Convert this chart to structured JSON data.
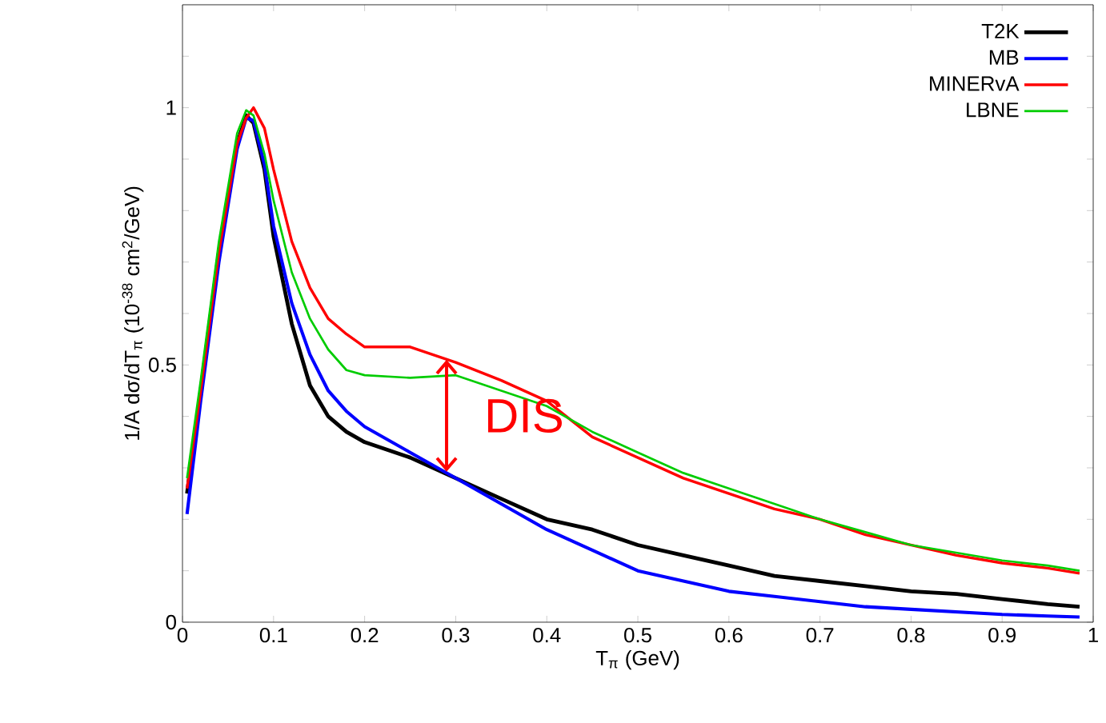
{
  "chart_data": {
    "type": "line",
    "xlabel": "T$_{π}$ (GeV)",
    "ylabel": "1/A dσ/dT$_{π}$ (10$^{-38}$ cm$^{2}$/GeV)",
    "x": [
      0.005,
      0.02,
      0.04,
      0.06,
      0.07,
      0.078,
      0.09,
      0.1,
      0.12,
      0.14,
      0.16,
      0.18,
      0.2,
      0.25,
      0.3,
      0.35,
      0.4,
      0.45,
      0.5,
      0.55,
      0.6,
      0.65,
      0.7,
      0.75,
      0.8,
      0.85,
      0.9,
      0.95,
      0.985
    ],
    "series": [
      {
        "name": "T2K",
        "color": "#000000",
        "values": [
          0.25,
          0.45,
          0.72,
          0.93,
          0.985,
          0.97,
          0.88,
          0.75,
          0.58,
          0.46,
          0.4,
          0.37,
          0.35,
          0.32,
          0.28,
          0.24,
          0.2,
          0.18,
          0.15,
          0.13,
          0.11,
          0.09,
          0.08,
          0.07,
          0.06,
          0.055,
          0.045,
          0.035,
          0.03
        ]
      },
      {
        "name": "MB",
        "color": "#0000ff",
        "values": [
          0.21,
          0.43,
          0.7,
          0.92,
          0.98,
          0.975,
          0.89,
          0.77,
          0.62,
          0.52,
          0.45,
          0.41,
          0.38,
          0.33,
          0.28,
          0.23,
          0.18,
          0.14,
          0.1,
          0.08,
          0.06,
          0.05,
          0.04,
          0.03,
          0.025,
          0.02,
          0.015,
          0.012,
          0.01
        ]
      },
      {
        "name": "MINERvA",
        "color": "#ff0000",
        "values": [
          0.26,
          0.45,
          0.72,
          0.93,
          0.98,
          1.0,
          0.96,
          0.88,
          0.74,
          0.65,
          0.59,
          0.56,
          0.535,
          0.535,
          0.505,
          0.47,
          0.43,
          0.36,
          0.32,
          0.28,
          0.25,
          0.22,
          0.2,
          0.17,
          0.15,
          0.13,
          0.115,
          0.105,
          0.095
        ]
      },
      {
        "name": "LBNE",
        "color": "#00cc00",
        "values": [
          0.28,
          0.47,
          0.74,
          0.95,
          0.995,
          0.985,
          0.91,
          0.82,
          0.68,
          0.59,
          0.53,
          0.49,
          0.48,
          0.475,
          0.48,
          0.45,
          0.42,
          0.37,
          0.33,
          0.29,
          0.26,
          0.23,
          0.2,
          0.175,
          0.15,
          0.135,
          0.12,
          0.11,
          0.1
        ]
      }
    ],
    "xlim": [
      0,
      1
    ],
    "ylim": [
      0,
      1.2
    ],
    "xticks": [
      0,
      0.1,
      0.2,
      0.3,
      0.4,
      0.5,
      0.6,
      0.7,
      0.8,
      0.9,
      1
    ],
    "yticks": [
      0,
      {
        "value": 0.1,
        "label": null
      },
      {
        "value": 0.2,
        "label": null
      },
      {
        "value": 0.3,
        "label": null
      },
      {
        "value": 0.4,
        "label": null
      },
      0.5,
      {
        "value": 0.6,
        "label": null
      },
      {
        "value": 0.7,
        "label": null
      },
      {
        "value": 0.8,
        "label": null
      },
      {
        "value": 0.9,
        "label": null
      },
      1,
      {
        "value": 1.1,
        "label": null
      }
    ],
    "annotations": [
      {
        "text": "DIS",
        "x": 0.29,
        "y": 0.51
      }
    ],
    "legend": "top right",
    "grid": false,
    "line_style": "solid"
  }
}
